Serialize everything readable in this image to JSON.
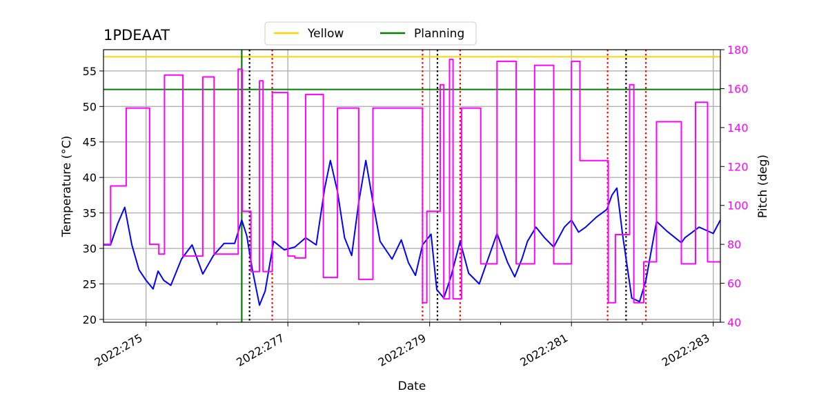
{
  "chart_data": {
    "type": "line",
    "title": "1PDEAAT",
    "xlabel": "Date",
    "ylabel_left": "Temperature ($^\\circ$C)",
    "ylabel_left_display": "Temperature (°C)",
    "ylabel_right": "Pitch (deg)",
    "xlim": [
      274.4,
      283.1
    ],
    "ylim_left": [
      19.6,
      58.0
    ],
    "ylim_right": [
      40,
      180
    ],
    "x_ticks": [
      {
        "value": 275,
        "label": "2022:275"
      },
      {
        "value": 277,
        "label": "2022:277"
      },
      {
        "value": 279,
        "label": "2022:279"
      },
      {
        "value": 281,
        "label": "2022:281"
      },
      {
        "value": 283,
        "label": "2022:283"
      }
    ],
    "x_minor_ticks": [
      276,
      278,
      280,
      282
    ],
    "y_left_ticks": [
      20,
      25,
      30,
      35,
      40,
      45,
      50,
      55
    ],
    "y_right_ticks": [
      40,
      60,
      80,
      100,
      120,
      140,
      160,
      180
    ],
    "grid": true,
    "legend": {
      "placement": "top-center, above plot",
      "entries": [
        {
          "label": "Yellow",
          "color": "#ffd700"
        },
        {
          "label": "Planning",
          "color": "#008000"
        }
      ]
    },
    "hlines": [
      {
        "name": "Yellow",
        "y": 57.0,
        "color": "#ffd700"
      },
      {
        "name": "Planning",
        "y": 52.4,
        "color": "#008000"
      }
    ],
    "vlines": [
      {
        "x": 276.35,
        "color": "#008000",
        "style": "solid"
      },
      {
        "x": 276.46,
        "color": "#000000",
        "style": "dotted"
      },
      {
        "x": 276.78,
        "color": "#ff0000",
        "style": "dotted"
      },
      {
        "x": 278.9,
        "color": "#ff0000",
        "style": "dotted"
      },
      {
        "x": 279.11,
        "color": "#000000",
        "style": "dotted"
      },
      {
        "x": 279.43,
        "color": "#ff0000",
        "style": "dotted"
      },
      {
        "x": 281.51,
        "color": "#ff0000",
        "style": "dotted"
      },
      {
        "x": 281.77,
        "color": "#000000",
        "style": "dotted"
      },
      {
        "x": 282.05,
        "color": "#ff0000",
        "style": "dotted"
      }
    ],
    "series": [
      {
        "name": "Temperature",
        "axis": "left",
        "color": "#0000ff",
        "x": [
          274.4,
          274.5,
          274.6,
          274.7,
          274.8,
          274.9,
          275.0,
          275.1,
          275.17,
          275.25,
          275.35,
          275.5,
          275.65,
          275.8,
          275.95,
          276.1,
          276.25,
          276.35,
          276.42,
          276.5,
          276.6,
          276.68,
          276.8,
          276.95,
          277.1,
          277.25,
          277.4,
          277.52,
          277.6,
          277.7,
          277.8,
          277.9,
          278.0,
          278.1,
          278.2,
          278.3,
          278.47,
          278.6,
          278.7,
          278.8,
          278.9,
          279.02,
          279.1,
          279.2,
          279.3,
          279.43,
          279.55,
          279.7,
          279.95,
          280.1,
          280.2,
          280.3,
          280.38,
          280.5,
          280.62,
          280.75,
          280.9,
          281.0,
          281.1,
          281.2,
          281.35,
          281.5,
          281.57,
          281.64,
          281.72,
          281.85,
          281.96,
          282.05,
          282.2,
          282.35,
          282.55,
          282.6,
          282.8,
          283.0,
          283.1
        ],
        "y": [
          30.5,
          30.5,
          33.5,
          35.8,
          30.5,
          27.0,
          25.5,
          24.3,
          26.8,
          25.5,
          24.8,
          28.5,
          30.5,
          26.4,
          29.0,
          30.7,
          30.7,
          34.0,
          31.8,
          27.0,
          22.0,
          24.0,
          31.0,
          29.8,
          30.2,
          31.5,
          30.5,
          38.5,
          42.4,
          38.0,
          31.5,
          29.0,
          36.5,
          42.4,
          36.5,
          31.0,
          28.5,
          31.2,
          28.0,
          26.2,
          30.5,
          32.0,
          24.2,
          23.0,
          26.0,
          31.0,
          26.5,
          25.0,
          32.1,
          28.0,
          26.0,
          28.5,
          31.0,
          33.0,
          31.5,
          30.2,
          33.0,
          34.0,
          32.3,
          33.0,
          34.4,
          35.5,
          37.5,
          38.5,
          32.0,
          23.0,
          22.5,
          25.5,
          33.8,
          32.4,
          30.8,
          31.5,
          33.0,
          32.1,
          34.0
        ]
      },
      {
        "name": "Pitch",
        "axis": "right",
        "color": "#ff00ff",
        "x": [
          274.4,
          274.5,
          274.5,
          274.72,
          274.72,
          275.05,
          275.05,
          275.18,
          275.18,
          275.26,
          275.26,
          275.52,
          275.52,
          275.8,
          275.8,
          275.96,
          275.96,
          276.3,
          276.3,
          276.36,
          276.36,
          276.48,
          276.48,
          276.6,
          276.6,
          276.65,
          276.65,
          276.78,
          276.78,
          277.0,
          277.0,
          277.1,
          277.1,
          277.25,
          277.25,
          277.5,
          277.5,
          277.7,
          277.7,
          278.0,
          278.0,
          278.2,
          278.2,
          278.45,
          278.45,
          278.9,
          278.9,
          278.96,
          278.96,
          279.15,
          279.15,
          279.2,
          279.2,
          279.28,
          279.28,
          279.33,
          279.33,
          279.45,
          279.45,
          279.72,
          279.72,
          279.95,
          279.95,
          280.22,
          280.22,
          280.48,
          280.48,
          280.75,
          280.75,
          281.0,
          281.0,
          281.12,
          281.12,
          281.52,
          281.52,
          281.62,
          281.62,
          281.82,
          281.82,
          281.88,
          281.88,
          282.02,
          282.02,
          282.2,
          282.2,
          282.55,
          282.55,
          282.75,
          282.75,
          282.92,
          282.92,
          283.1
        ],
        "y": [
          80,
          80,
          110,
          110,
          150,
          150,
          80,
          80,
          75,
          75,
          167,
          167,
          74,
          74,
          166,
          166,
          75,
          75,
          170,
          170,
          97,
          97,
          66,
          66,
          164,
          164,
          66,
          66,
          158,
          158,
          74,
          74,
          73,
          73,
          157,
          157,
          63,
          63,
          150,
          150,
          62,
          62,
          150,
          150,
          150,
          150,
          50,
          50,
          97,
          97,
          162,
          162,
          52,
          52,
          175,
          175,
          52,
          52,
          150,
          150,
          70,
          70,
          174,
          174,
          70,
          70,
          172,
          172,
          70,
          70,
          174,
          174,
          123,
          123,
          50,
          50,
          85,
          85,
          162,
          162,
          50,
          50,
          71,
          71,
          143,
          143,
          70,
          70,
          153,
          153,
          71,
          71
        ]
      }
    ]
  }
}
